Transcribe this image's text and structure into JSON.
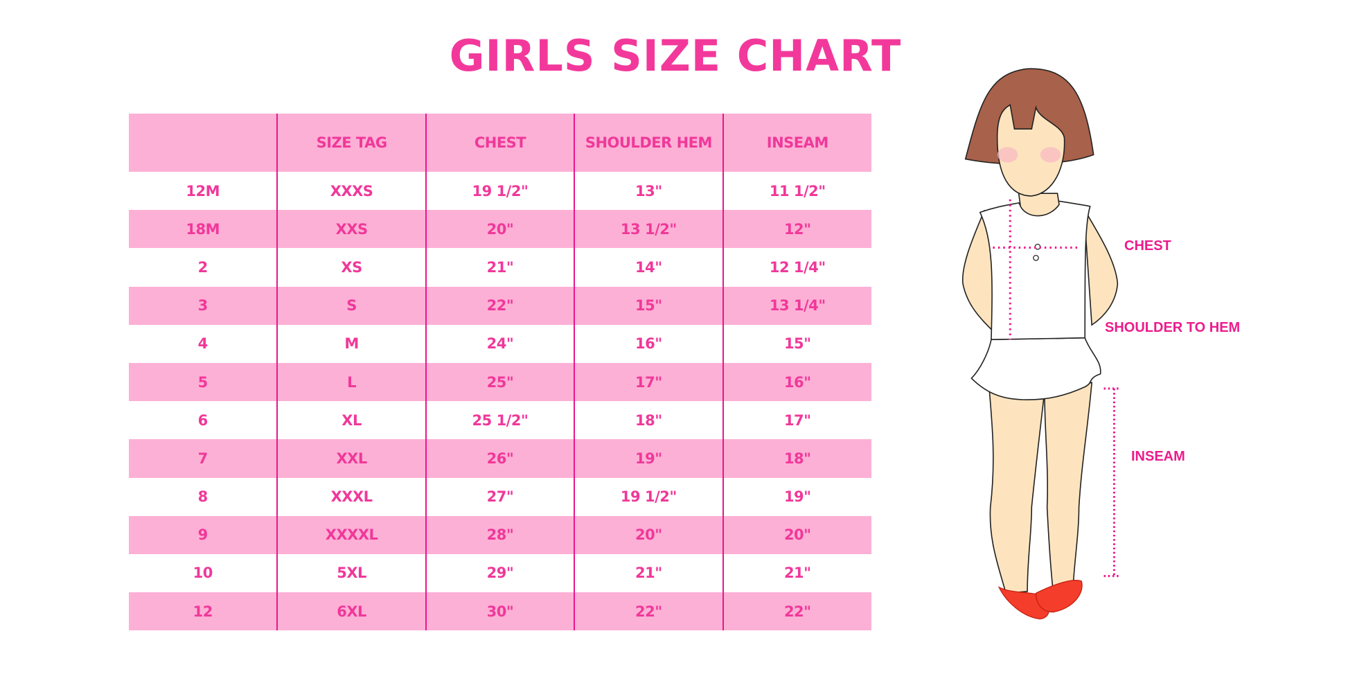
{
  "title": "GIRLS SIZE CHART",
  "colors": {
    "accent": "#f0389a",
    "row_pink": "#fdb0d5",
    "divider": "#e8168c"
  },
  "table": {
    "headers": [
      "",
      "SIZE TAG",
      "CHEST",
      "SHOULDER HEM",
      "INSEAM"
    ],
    "rows": [
      [
        "12M",
        "XXXS",
        "19 1/2\"",
        "13\"",
        "11 1/2\""
      ],
      [
        "18M",
        "XXS",
        "20\"",
        "13 1/2\"",
        "12\""
      ],
      [
        "2",
        "XS",
        "21\"",
        "14\"",
        "12 1/4\""
      ],
      [
        "3",
        "S",
        "22\"",
        "15\"",
        "13 1/4\""
      ],
      [
        "4",
        "M",
        "24\"",
        "16\"",
        "15\""
      ],
      [
        "5",
        "L",
        "25\"",
        "17\"",
        "16\""
      ],
      [
        "6",
        "XL",
        "25 1/2\"",
        "18\"",
        "17\""
      ],
      [
        "7",
        "XXL",
        "26\"",
        "19\"",
        "18\""
      ],
      [
        "8",
        "XXXL",
        "27\"",
        "19 1/2\"",
        "19\""
      ],
      [
        "9",
        "XXXXL",
        "28\"",
        "20\"",
        "20\""
      ],
      [
        "10",
        "5XL",
        "29\"",
        "21\"",
        "21\""
      ],
      [
        "12",
        "6XL",
        "30\"",
        "22\"",
        "22\""
      ]
    ]
  },
  "illustration": {
    "labels": {
      "chest": "CHEST",
      "shoulder_to_hem": "SHOULDER TO HEM",
      "inseam": "INSEAM"
    }
  }
}
